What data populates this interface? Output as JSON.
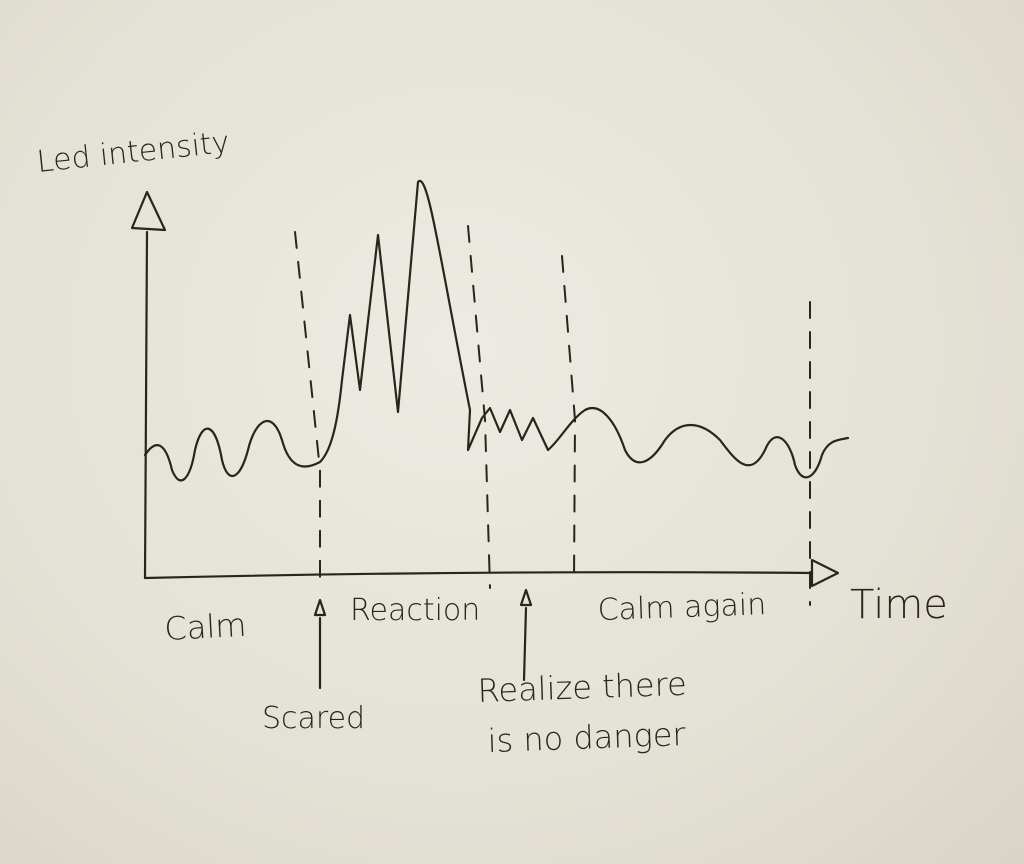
{
  "diagram": {
    "y_axis_label": "Led intensity",
    "x_axis_label": "Time",
    "phases": [
      "Calm",
      "Reaction",
      "Calm again"
    ],
    "events": [
      "Scared",
      "Realize there",
      "is no danger"
    ],
    "colors": {
      "ink": "#2b241b",
      "paper": "#e6e3d9"
    }
  }
}
